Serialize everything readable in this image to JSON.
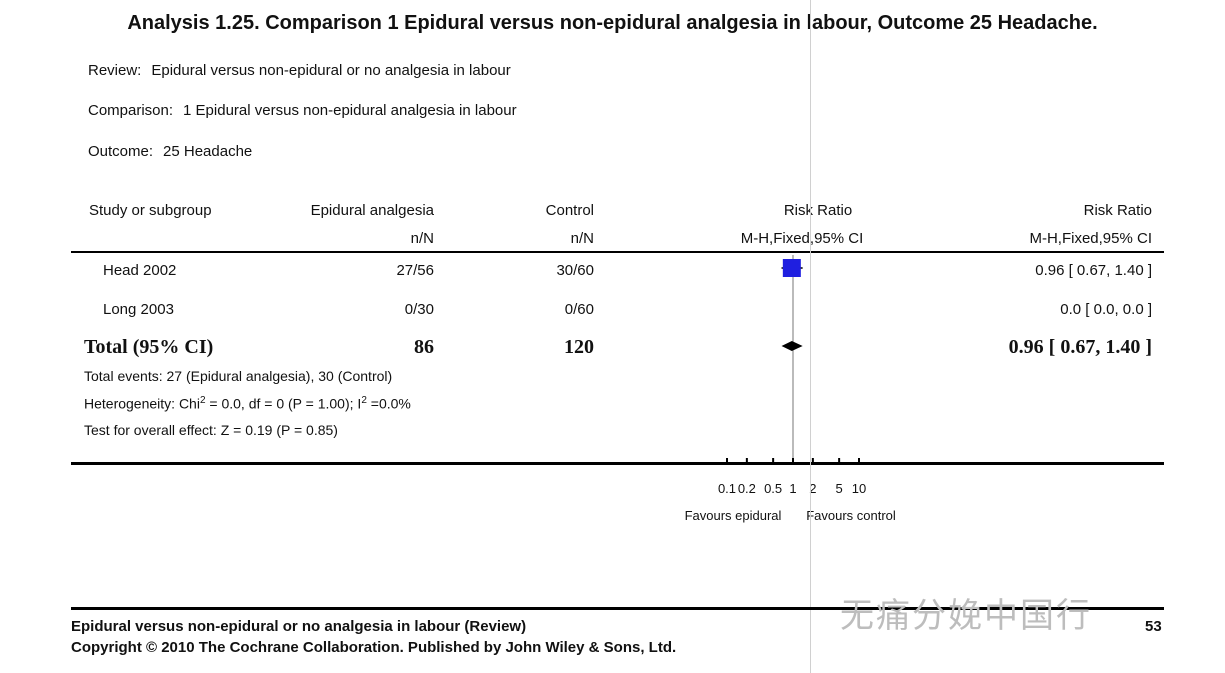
{
  "title": "Analysis 1.25.   Comparison 1 Epidural versus non-epidural analgesia in labour, Outcome 25 Headache.",
  "meta": {
    "review_label": "Review:",
    "review_value": "Epidural versus non-epidural or no analgesia in labour",
    "comparison_label": "Comparison:",
    "comparison_value": "1 Epidural versus non-epidural analgesia in labour",
    "outcome_label": "Outcome:",
    "outcome_value": "25 Headache"
  },
  "table": {
    "col_study": "Study or subgroup",
    "col_epidural": "Epidural analgesia",
    "col_epidural_sub": "n/N",
    "col_control": "Control",
    "col_control_sub": "n/N",
    "col_rr_plot": "Risk Ratio",
    "col_rr_plot_sub": "M-H,Fixed,95% CI",
    "col_rr": "Risk Ratio",
    "col_rr_sub": "M-H,Fixed,95% CI",
    "rows": [
      {
        "study": "Head 2002",
        "epidural": "27/56",
        "control": "30/60",
        "rr": "0.96 [ 0.67, 1.40 ]"
      },
      {
        "study": "Long 2003",
        "epidural": "0/30",
        "control": "0/60",
        "rr": "0.0 [ 0.0, 0.0 ]"
      }
    ],
    "total": {
      "label": "Total (95% CI)",
      "epidural": "86",
      "control": "120",
      "rr": "0.96 [ 0.67, 1.40 ]"
    },
    "total_events": "Total events: 27 (Epidural analgesia), 30 (Control)",
    "heterogeneity_prefix": "Heterogeneity: Chi",
    "heterogeneity_sup1": "2",
    "heterogeneity_mid": " = 0.0, df = 0 (P = 1.00); I",
    "heterogeneity_sup2": "2",
    "heterogeneity_suffix": " =0.0%",
    "overall_effect": "Test for overall effect: Z = 0.19 (P = 0.85)"
  },
  "chart_data": {
    "type": "forest",
    "scale": "log",
    "axis_ticks": [
      "0.1",
      "0.2",
      "0.5",
      "1",
      "2",
      "5",
      "10"
    ],
    "axis_tick_values": [
      0.1,
      0.2,
      0.5,
      1,
      2,
      5,
      10
    ],
    "favours_left": "Favours epidural",
    "favours_right": "Favours control",
    "studies": [
      {
        "study": "Head 2002",
        "rr": 0.96,
        "ci_low": 0.67,
        "ci_high": 1.4
      }
    ],
    "pooled": {
      "rr": 0.96,
      "ci_low": 0.67,
      "ci_high": 1.4
    },
    "colors": {
      "study_marker": "#1f1fe0",
      "pooled_marker": "#000000"
    }
  },
  "footer": {
    "line1": "Epidural versus non-epidural or no analgesia in labour (Review)",
    "line2": "Copyright © 2010 The Cochrane Collaboration. Published by John Wiley & Sons, Ltd.",
    "page_number": "53",
    "watermark": "无痛分娩中国行"
  }
}
